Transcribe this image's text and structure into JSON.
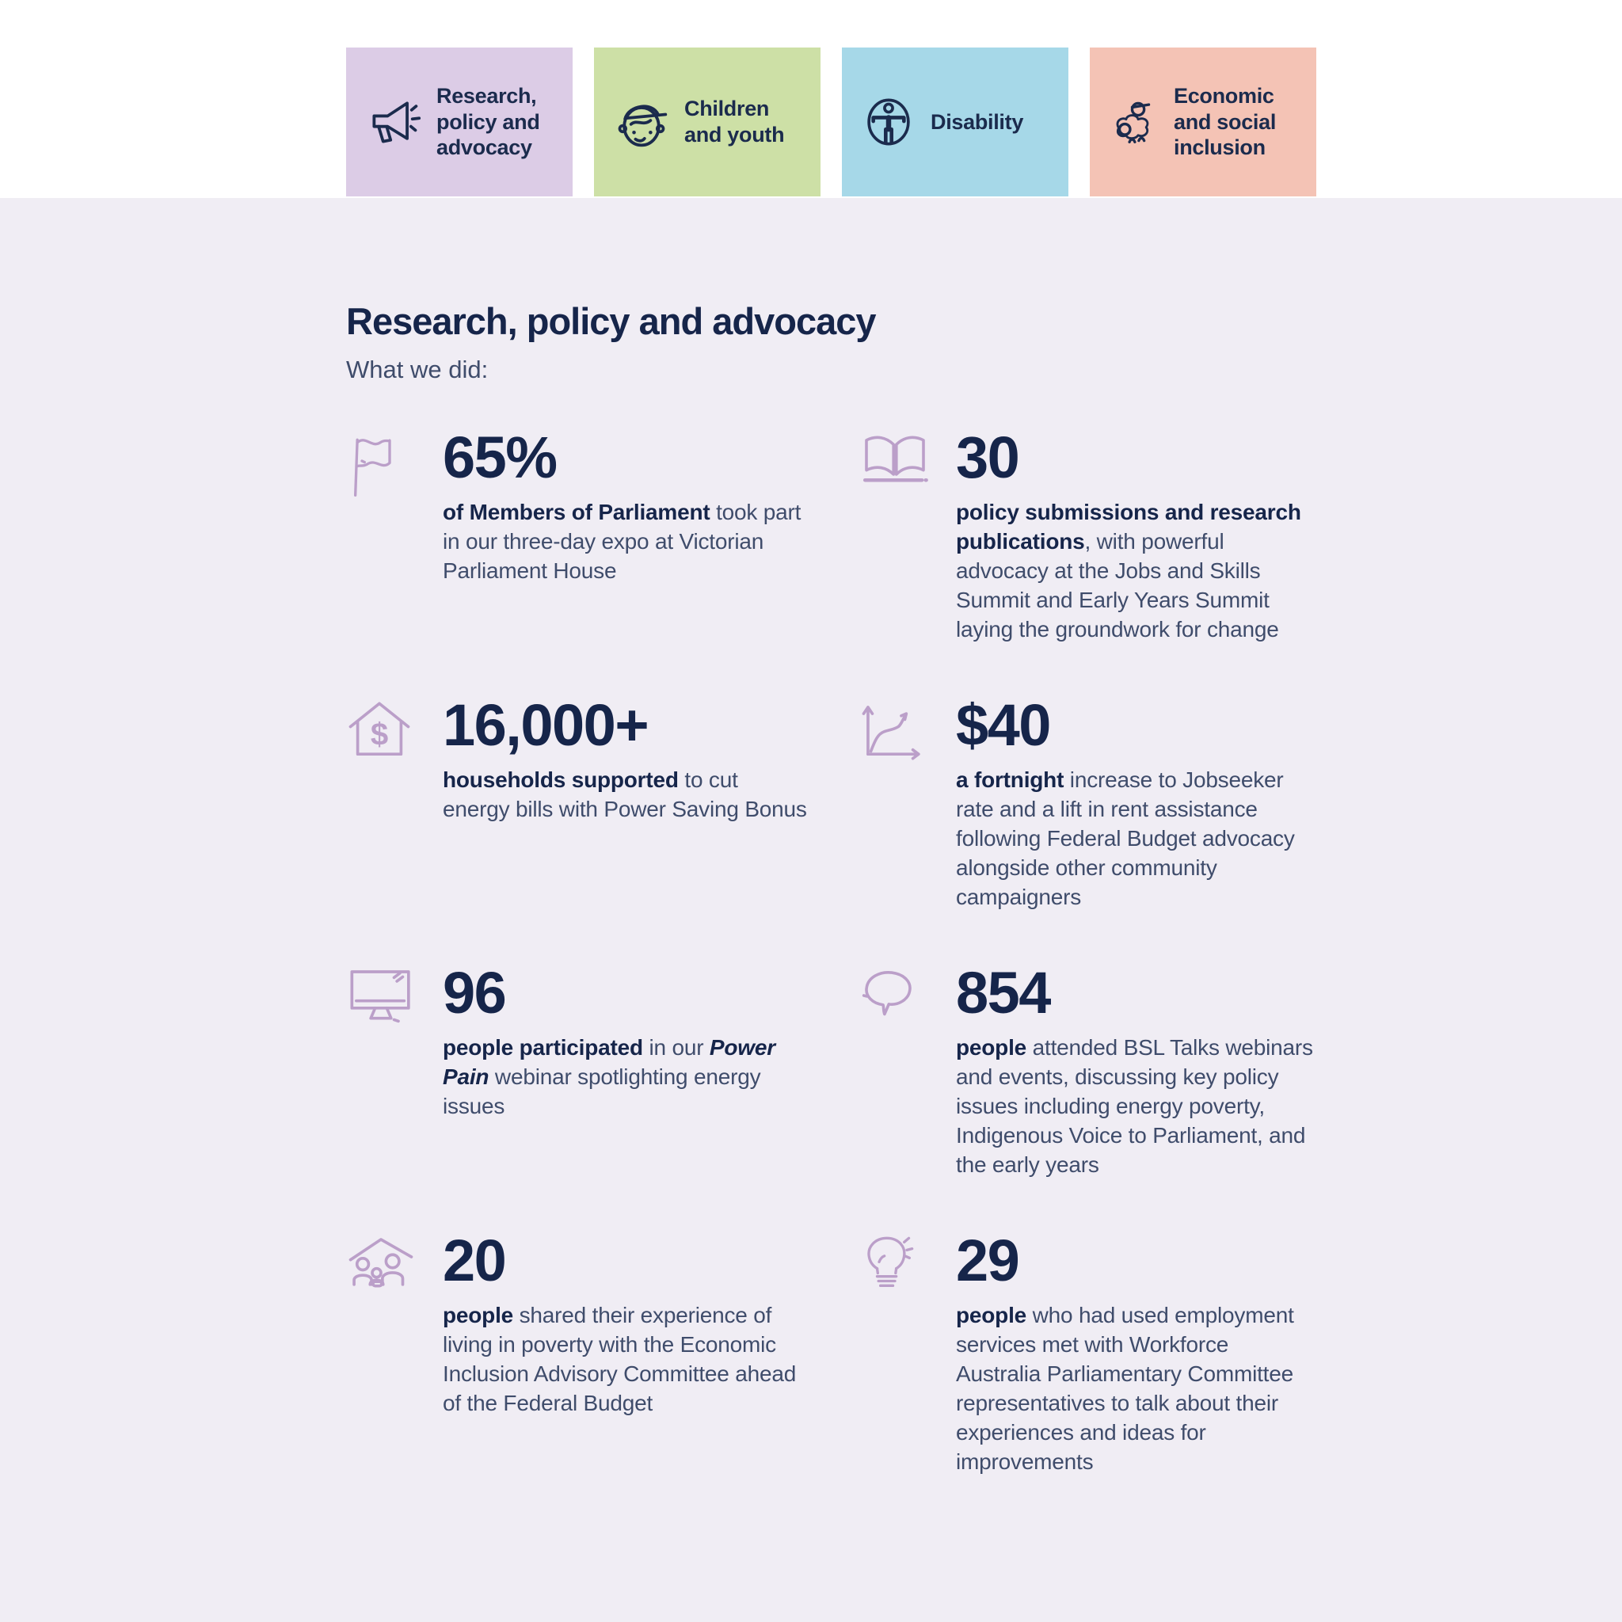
{
  "tabs": [
    {
      "label": "Research, policy and advocacy",
      "icon": "megaphone-icon",
      "bg": "#dccce6"
    },
    {
      "label": "Children and youth",
      "icon": "child-face-icon",
      "bg": "#cde0a6"
    },
    {
      "label": "Disability",
      "icon": "accessibility-icon",
      "bg": "#a6d8e8"
    },
    {
      "label": "Economic and social inclusion",
      "icon": "people-group-icon",
      "bg": "#f4c3b5"
    }
  ],
  "section": {
    "title": "Research, policy and advocacy",
    "subtitle": "What we did:"
  },
  "stats": [
    {
      "icon": "flag-icon",
      "value": "65%",
      "desc": [
        {
          "t": "of Members of Parliament",
          "b": true
        },
        {
          "t": " took part in our three-day expo at Victorian Parliament House"
        }
      ]
    },
    {
      "icon": "open-book-icon",
      "value": "30",
      "desc": [
        {
          "t": "policy submissions and research publications",
          "b": true
        },
        {
          "t": ", with powerful advocacy at the Jobs and Skills Summit and Early Years Summit laying the groundwork for change"
        }
      ]
    },
    {
      "icon": "house-dollar-icon",
      "value": "16,000+",
      "desc": [
        {
          "t": "households supported",
          "b": true
        },
        {
          "t": " to cut energy bills with Power Saving Bonus"
        }
      ]
    },
    {
      "icon": "line-chart-icon",
      "value": "$40",
      "desc": [
        {
          "t": "a fortnight",
          "b": true
        },
        {
          "t": " increase to Jobseeker rate and a lift in rent assistance following Federal Budget advocacy alongside other community campaigners"
        }
      ]
    },
    {
      "icon": "monitor-icon",
      "value": "96",
      "desc": [
        {
          "t": "people participated",
          "b": true
        },
        {
          "t": " in our "
        },
        {
          "t": "Power Pain",
          "b": true,
          "i": true
        },
        {
          "t": " webinar spotlighting energy issues"
        }
      ]
    },
    {
      "icon": "speech-bubble-icon",
      "value": "854",
      "desc": [
        {
          "t": "people",
          "b": true
        },
        {
          "t": " attended BSL Talks webinars and events, discussing key policy issues including energy poverty, Indigenous Voice to Parliament, and the early years"
        }
      ]
    },
    {
      "icon": "house-people-icon",
      "value": "20",
      "desc": [
        {
          "t": "people",
          "b": true
        },
        {
          "t": " shared their experience of living in poverty with the Economic Inclusion Advisory Committee ahead of the Federal Budget"
        }
      ]
    },
    {
      "icon": "lightbulb-icon",
      "value": "29",
      "desc": [
        {
          "t": "people",
          "b": true
        },
        {
          "t": " who had used employment services met with Workforce Australia Parliamentary Committee representatives to talk about their experiences and ideas for improvements"
        }
      ]
    }
  ],
  "colors": {
    "band_bg": "#ffffff",
    "page_bg": "#f0edf4",
    "tab_purple": "#dccce6",
    "tab_green": "#cde0a6",
    "tab_blue": "#a6d8e8",
    "tab_salmon": "#f4c3b5",
    "navy_heading": "#16254a",
    "navy_icon": "#1b2b4d",
    "body_text": "#3f4c6b",
    "stat_icon_purple": "#bb9fc9"
  }
}
